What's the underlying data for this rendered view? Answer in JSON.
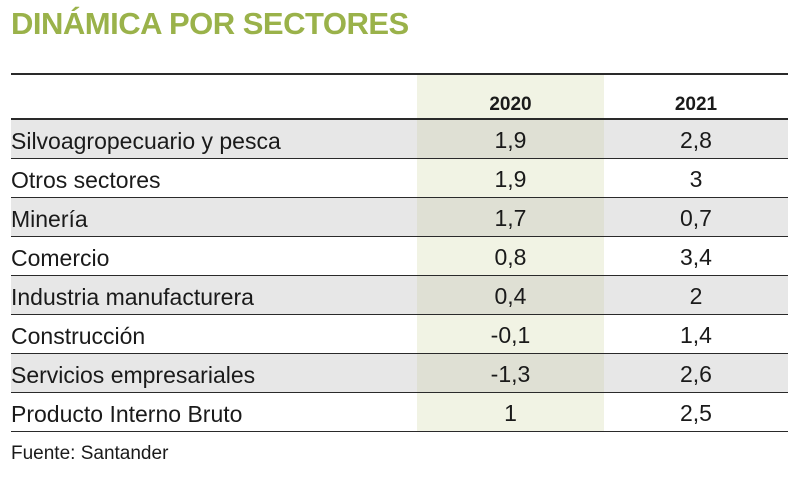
{
  "title": "DINÁMICA POR SECTORES",
  "chart_data": {
    "type": "table",
    "title": "DINÁMICA POR SECTORES",
    "columns": [
      "2020",
      "2021"
    ],
    "rows": [
      {
        "label": "Silvoagropecuario y pesca",
        "values": [
          "1,9",
          "2,8"
        ]
      },
      {
        "label": "Otros sectores",
        "values": [
          "1,9",
          "3"
        ]
      },
      {
        "label": "Minería",
        "values": [
          "1,7",
          "0,7"
        ]
      },
      {
        "label": "Comercio",
        "values": [
          "0,8",
          "3,4"
        ]
      },
      {
        "label": "Industria manufacturera",
        "values": [
          "0,4",
          "2"
        ]
      },
      {
        "label": "Construcción",
        "values": [
          "-0,1",
          "1,4"
        ]
      },
      {
        "label": "Servicios empresariales",
        "values": [
          "-1,3",
          "2,6"
        ]
      },
      {
        "label": "Producto Interno Bruto",
        "values": [
          "1",
          "2,5"
        ]
      }
    ],
    "source": "Fuente: Santander"
  },
  "colors": {
    "title": "#9ab24a",
    "row_shade": "#e7e7e7",
    "column_2020_highlight": "#f1f3e4"
  }
}
